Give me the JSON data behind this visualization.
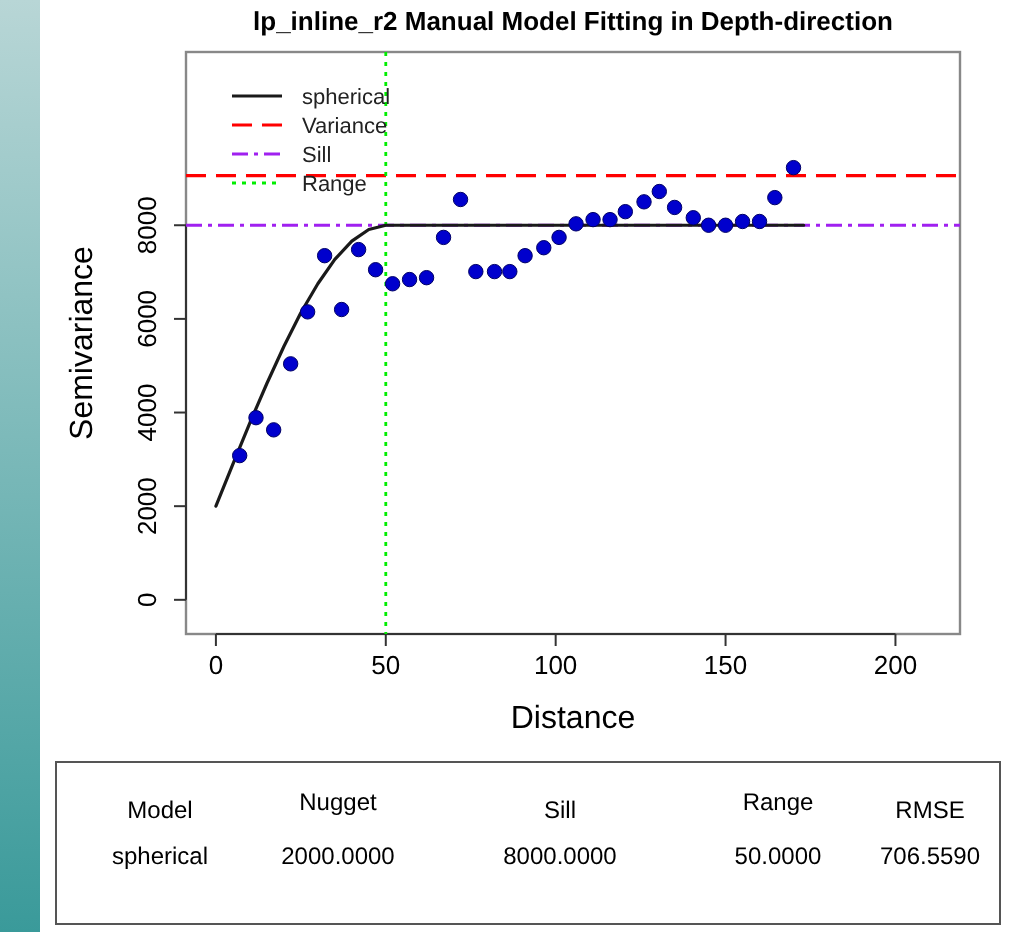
{
  "chart_data": [
    {
      "type": "scatter",
      "title": "lp_inline_r2 Manual Model Fitting in Depth-direction",
      "xlabel": "Distance",
      "ylabel": "Semivariance",
      "xlim": [
        -8.8,
        219
      ],
      "xticks": [
        0,
        50,
        100,
        150,
        200
      ],
      "ylim": [
        -730,
        11700
      ],
      "yticks": [
        0,
        2000,
        4000,
        6000,
        8000
      ],
      "grid": false,
      "legend": "top left",
      "series": [
        {
          "type": "line",
          "name": "spherical",
          "color": "#1a1a1a",
          "line_style": "solid",
          "marker": "none",
          "x": [
            0,
            5,
            10,
            15,
            20,
            25,
            30,
            35,
            40,
            45,
            50,
            173
          ],
          "values": [
            2000,
            2900,
            3780,
            4620,
            5410,
            6130,
            6750,
            7270,
            7660,
            7910,
            8000,
            8000
          ]
        },
        {
          "type": "scatter",
          "color": "#0000cd",
          "marker": "circle",
          "x": [
            7,
            11.8,
            17,
            22,
            27,
            32,
            37,
            42,
            47,
            52,
            57,
            62,
            67,
            72,
            76.5,
            82,
            86.5,
            91,
            96.5,
            101,
            106,
            111,
            116,
            120.5,
            126,
            130.5,
            135,
            140.5,
            145,
            150,
            155,
            160,
            164.5,
            170
          ],
          "values": [
            3080,
            3890,
            3630,
            5040,
            6150,
            7350,
            6200,
            7480,
            7050,
            6750,
            6840,
            6880,
            7740,
            8550,
            7010,
            7010,
            7010,
            7350,
            7520,
            7740,
            8030,
            8120,
            8120,
            8290,
            8500,
            8720,
            8380,
            8160,
            8000,
            8000,
            8080,
            8080,
            8590,
            9230
          ]
        }
      ],
      "ref_lines": [
        {
          "axis": "y",
          "value": 9060,
          "label": "Variance",
          "color": "#ff0000",
          "line_style": "dashed"
        },
        {
          "axis": "y",
          "value": 8000,
          "label": "Sill",
          "color": "#a020f0",
          "line_style": "dashdot"
        },
        {
          "axis": "x",
          "value": 50,
          "label": "Range",
          "color": "#00ee00",
          "line_style": "dotted"
        }
      ]
    },
    {
      "type": "other",
      "annotations": [
        "Model",
        "Nugget",
        "Sill",
        "Range",
        "RMSE",
        "spherical",
        "2000.0000",
        "8000.0000",
        "50.0000",
        "706.5590"
      ]
    }
  ]
}
